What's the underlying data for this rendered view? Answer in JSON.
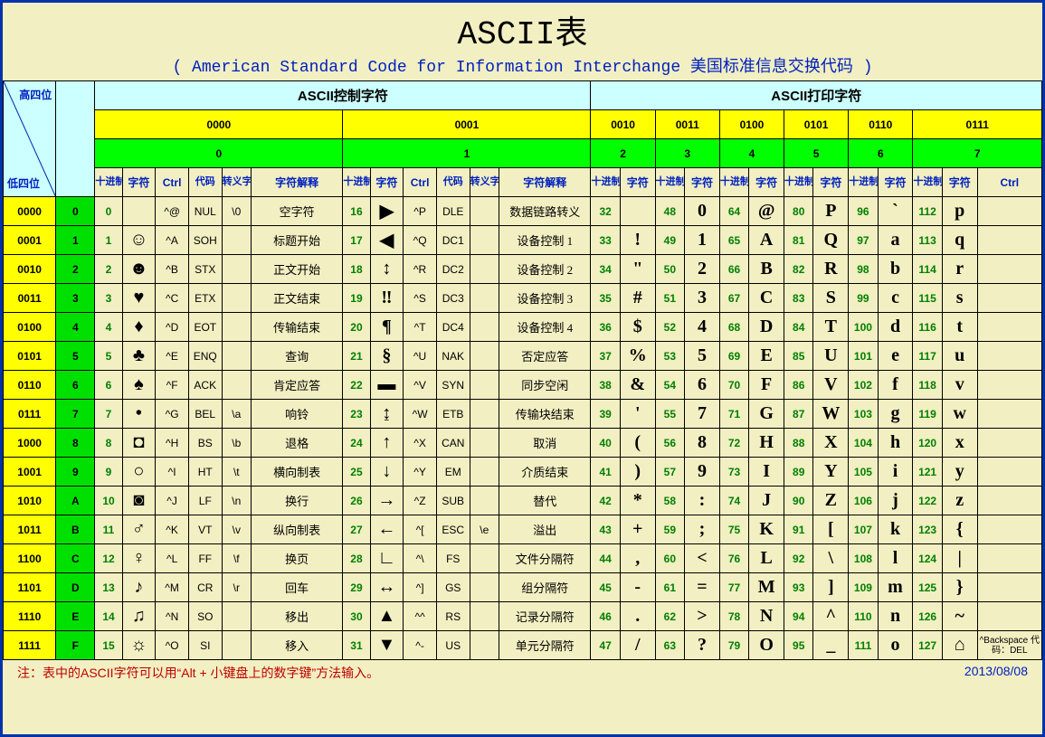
{
  "title": "ASCII表",
  "subtitle": "( American Standard Code for Information Interchange  美国标准信息交换代码 )",
  "corner": {
    "high": "高四位",
    "low": "低四位"
  },
  "section_control": "ASCII控制字符",
  "section_print": "ASCII打印字符",
  "high_bin": [
    "0000",
    "0001",
    "0010",
    "0011",
    "0100",
    "0101",
    "0110",
    "0111"
  ],
  "high_dec": [
    "0",
    "1",
    "2",
    "3",
    "4",
    "5",
    "6",
    "7"
  ],
  "ctrl_headers": [
    "十进制",
    "字符",
    "Ctrl",
    "代码",
    "转义字符",
    "字符解释"
  ],
  "print_headers": [
    "十进制",
    "字符"
  ],
  "print_ctrl_header": "Ctrl",
  "low_rows": [
    {
      "bin": "0000",
      "dec": "0"
    },
    {
      "bin": "0001",
      "dec": "1"
    },
    {
      "bin": "0010",
      "dec": "2"
    },
    {
      "bin": "0011",
      "dec": "3"
    },
    {
      "bin": "0100",
      "dec": "4"
    },
    {
      "bin": "0101",
      "dec": "5"
    },
    {
      "bin": "0110",
      "dec": "6"
    },
    {
      "bin": "0111",
      "dec": "7"
    },
    {
      "bin": "1000",
      "dec": "8"
    },
    {
      "bin": "1001",
      "dec": "9"
    },
    {
      "bin": "1010",
      "dec": "A"
    },
    {
      "bin": "1011",
      "dec": "B"
    },
    {
      "bin": "1100",
      "dec": "C"
    },
    {
      "bin": "1101",
      "dec": "D"
    },
    {
      "bin": "1110",
      "dec": "E"
    },
    {
      "bin": "1111",
      "dec": "F"
    }
  ],
  "ctrl": [
    [
      {
        "n": "0",
        "g": "",
        "c": "^@",
        "code": "NUL",
        "esc": "\\0",
        "desc": "空字符"
      },
      {
        "n": "1",
        "g": "☺",
        "c": "^A",
        "code": "SOH",
        "esc": "",
        "desc": "标题开始"
      },
      {
        "n": "2",
        "g": "☻",
        "c": "^B",
        "code": "STX",
        "esc": "",
        "desc": "正文开始"
      },
      {
        "n": "3",
        "g": "♥",
        "c": "^C",
        "code": "ETX",
        "esc": "",
        "desc": "正文结束"
      },
      {
        "n": "4",
        "g": "♦",
        "c": "^D",
        "code": "EOT",
        "esc": "",
        "desc": "传输结束"
      },
      {
        "n": "5",
        "g": "♣",
        "c": "^E",
        "code": "ENQ",
        "esc": "",
        "desc": "查询"
      },
      {
        "n": "6",
        "g": "♠",
        "c": "^F",
        "code": "ACK",
        "esc": "",
        "desc": "肯定应答"
      },
      {
        "n": "7",
        "g": "•",
        "c": "^G",
        "code": "BEL",
        "esc": "\\a",
        "desc": "响铃"
      },
      {
        "n": "8",
        "g": "◘",
        "c": "^H",
        "code": "BS",
        "esc": "\\b",
        "desc": "退格"
      },
      {
        "n": "9",
        "g": "○",
        "c": "^I",
        "code": "HT",
        "esc": "\\t",
        "desc": "横向制表"
      },
      {
        "n": "10",
        "g": "◙",
        "c": "^J",
        "code": "LF",
        "esc": "\\n",
        "desc": "换行"
      },
      {
        "n": "11",
        "g": "♂",
        "c": "^K",
        "code": "VT",
        "esc": "\\v",
        "desc": "纵向制表"
      },
      {
        "n": "12",
        "g": "♀",
        "c": "^L",
        "code": "FF",
        "esc": "\\f",
        "desc": "换页"
      },
      {
        "n": "13",
        "g": "♪",
        "c": "^M",
        "code": "CR",
        "esc": "\\r",
        "desc": "回车"
      },
      {
        "n": "14",
        "g": "♫",
        "c": "^N",
        "code": "SO",
        "esc": "",
        "desc": "移出"
      },
      {
        "n": "15",
        "g": "☼",
        "c": "^O",
        "code": "SI",
        "esc": "",
        "desc": "移入"
      }
    ],
    [
      {
        "n": "16",
        "g": "▶",
        "c": "^P",
        "code": "DLE",
        "esc": "",
        "desc": "数据链路转义"
      },
      {
        "n": "17",
        "g": "◀",
        "c": "^Q",
        "code": "DC1",
        "esc": "",
        "desc": "设备控制 1"
      },
      {
        "n": "18",
        "g": "↕",
        "c": "^R",
        "code": "DC2",
        "esc": "",
        "desc": "设备控制 2"
      },
      {
        "n": "19",
        "g": "‼",
        "c": "^S",
        "code": "DC3",
        "esc": "",
        "desc": "设备控制 3"
      },
      {
        "n": "20",
        "g": "¶",
        "c": "^T",
        "code": "DC4",
        "esc": "",
        "desc": "设备控制 4"
      },
      {
        "n": "21",
        "g": "§",
        "c": "^U",
        "code": "NAK",
        "esc": "",
        "desc": "否定应答"
      },
      {
        "n": "22",
        "g": "▬",
        "c": "^V",
        "code": "SYN",
        "esc": "",
        "desc": "同步空闲"
      },
      {
        "n": "23",
        "g": "↨",
        "c": "^W",
        "code": "ETB",
        "esc": "",
        "desc": "传输块结束"
      },
      {
        "n": "24",
        "g": "↑",
        "c": "^X",
        "code": "CAN",
        "esc": "",
        "desc": "取消"
      },
      {
        "n": "25",
        "g": "↓",
        "c": "^Y",
        "code": "EM",
        "esc": "",
        "desc": "介质结束"
      },
      {
        "n": "26",
        "g": "→",
        "c": "^Z",
        "code": "SUB",
        "esc": "",
        "desc": "替代"
      },
      {
        "n": "27",
        "g": "←",
        "c": "^[",
        "code": "ESC",
        "esc": "\\e",
        "desc": "溢出"
      },
      {
        "n": "28",
        "g": "∟",
        "c": "^\\",
        "code": "FS",
        "esc": "",
        "desc": "文件分隔符"
      },
      {
        "n": "29",
        "g": "↔",
        "c": "^]",
        "code": "GS",
        "esc": "",
        "desc": "组分隔符"
      },
      {
        "n": "30",
        "g": "▲",
        "c": "^^",
        "code": "RS",
        "esc": "",
        "desc": "记录分隔符"
      },
      {
        "n": "31",
        "g": "▼",
        "c": "^-",
        "code": "US",
        "esc": "",
        "desc": "单元分隔符"
      }
    ]
  ],
  "print": [
    [
      {
        "n": "32",
        "g": " "
      },
      {
        "n": "33",
        "g": "!"
      },
      {
        "n": "34",
        "g": "\""
      },
      {
        "n": "35",
        "g": "#"
      },
      {
        "n": "36",
        "g": "$"
      },
      {
        "n": "37",
        "g": "%"
      },
      {
        "n": "38",
        "g": "&"
      },
      {
        "n": "39",
        "g": "'"
      },
      {
        "n": "40",
        "g": "("
      },
      {
        "n": "41",
        "g": ")"
      },
      {
        "n": "42",
        "g": "*"
      },
      {
        "n": "43",
        "g": "+"
      },
      {
        "n": "44",
        "g": ","
      },
      {
        "n": "45",
        "g": "-"
      },
      {
        "n": "46",
        "g": "."
      },
      {
        "n": "47",
        "g": "/"
      }
    ],
    [
      {
        "n": "48",
        "g": "0"
      },
      {
        "n": "49",
        "g": "1"
      },
      {
        "n": "50",
        "g": "2"
      },
      {
        "n": "51",
        "g": "3"
      },
      {
        "n": "52",
        "g": "4"
      },
      {
        "n": "53",
        "g": "5"
      },
      {
        "n": "54",
        "g": "6"
      },
      {
        "n": "55",
        "g": "7"
      },
      {
        "n": "56",
        "g": "8"
      },
      {
        "n": "57",
        "g": "9"
      },
      {
        "n": "58",
        "g": ":"
      },
      {
        "n": "59",
        "g": ";"
      },
      {
        "n": "60",
        "g": "<"
      },
      {
        "n": "61",
        "g": "="
      },
      {
        "n": "62",
        "g": ">"
      },
      {
        "n": "63",
        "g": "?"
      }
    ],
    [
      {
        "n": "64",
        "g": "@"
      },
      {
        "n": "65",
        "g": "A"
      },
      {
        "n": "66",
        "g": "B"
      },
      {
        "n": "67",
        "g": "C"
      },
      {
        "n": "68",
        "g": "D"
      },
      {
        "n": "69",
        "g": "E"
      },
      {
        "n": "70",
        "g": "F"
      },
      {
        "n": "71",
        "g": "G"
      },
      {
        "n": "72",
        "g": "H"
      },
      {
        "n": "73",
        "g": "I"
      },
      {
        "n": "74",
        "g": "J"
      },
      {
        "n": "75",
        "g": "K"
      },
      {
        "n": "76",
        "g": "L"
      },
      {
        "n": "77",
        "g": "M"
      },
      {
        "n": "78",
        "g": "N"
      },
      {
        "n": "79",
        "g": "O"
      }
    ],
    [
      {
        "n": "80",
        "g": "P"
      },
      {
        "n": "81",
        "g": "Q"
      },
      {
        "n": "82",
        "g": "R"
      },
      {
        "n": "83",
        "g": "S"
      },
      {
        "n": "84",
        "g": "T"
      },
      {
        "n": "85",
        "g": "U"
      },
      {
        "n": "86",
        "g": "V"
      },
      {
        "n": "87",
        "g": "W"
      },
      {
        "n": "88",
        "g": "X"
      },
      {
        "n": "89",
        "g": "Y"
      },
      {
        "n": "90",
        "g": "Z"
      },
      {
        "n": "91",
        "g": "["
      },
      {
        "n": "92",
        "g": "\\"
      },
      {
        "n": "93",
        "g": "]"
      },
      {
        "n": "94",
        "g": "^"
      },
      {
        "n": "95",
        "g": "_"
      }
    ],
    [
      {
        "n": "96",
        "g": "`"
      },
      {
        "n": "97",
        "g": "a"
      },
      {
        "n": "98",
        "g": "b"
      },
      {
        "n": "99",
        "g": "c"
      },
      {
        "n": "100",
        "g": "d"
      },
      {
        "n": "101",
        "g": "e"
      },
      {
        "n": "102",
        "g": "f"
      },
      {
        "n": "103",
        "g": "g"
      },
      {
        "n": "104",
        "g": "h"
      },
      {
        "n": "105",
        "g": "i"
      },
      {
        "n": "106",
        "g": "j"
      },
      {
        "n": "107",
        "g": "k"
      },
      {
        "n": "108",
        "g": "l"
      },
      {
        "n": "109",
        "g": "m"
      },
      {
        "n": "110",
        "g": "n"
      },
      {
        "n": "111",
        "g": "o"
      }
    ],
    [
      {
        "n": "112",
        "g": "p"
      },
      {
        "n": "113",
        "g": "q"
      },
      {
        "n": "114",
        "g": "r"
      },
      {
        "n": "115",
        "g": "s"
      },
      {
        "n": "116",
        "g": "t"
      },
      {
        "n": "117",
        "g": "u"
      },
      {
        "n": "118",
        "g": "v"
      },
      {
        "n": "119",
        "g": "w"
      },
      {
        "n": "120",
        "g": "x"
      },
      {
        "n": "121",
        "g": "y"
      },
      {
        "n": "122",
        "g": "z"
      },
      {
        "n": "123",
        "g": "{"
      },
      {
        "n": "124",
        "g": "|"
      },
      {
        "n": "125",
        "g": "}"
      },
      {
        "n": "126",
        "g": "~"
      },
      {
        "n": "127",
        "g": "⌂"
      }
    ]
  ],
  "del_note": "^Backspace\n代码：DEL",
  "footer_note": "注：表中的ASCII字符可以用“Alt + 小键盘上的数字键”方法输入。",
  "footer_date": "2013/08/08"
}
